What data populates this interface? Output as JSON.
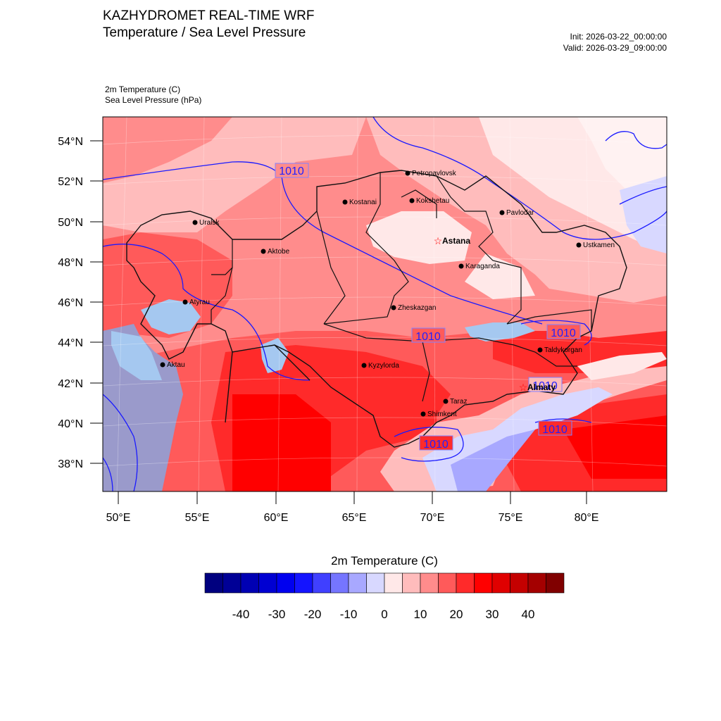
{
  "header": {
    "title": "KAZHYDROMET REAL-TIME WRF",
    "subtitle": "Temperature / Sea Level Pressure",
    "init": "Init: 2026-03-22_00:00:00",
    "valid": "Valid: 2026-03-29_09:00:00"
  },
  "variables": {
    "primary": "2m Temperature   (C)",
    "secondary": "Sea Level Pressure   (hPa)"
  },
  "map": {
    "lat_labels": [
      "54°N",
      "52°N",
      "50°N",
      "48°N",
      "46°N",
      "44°N",
      "42°N",
      "40°N",
      "38°N"
    ],
    "lon_labels": [
      "50°E",
      "55°E",
      "60°E",
      "65°E",
      "70°E",
      "75°E",
      "80°E"
    ],
    "isobar_labels": [
      "1010",
      "1010",
      "1010",
      "1010",
      "1010",
      "1010"
    ],
    "cities": [
      {
        "name": "Petropavlovsk",
        "capital": false
      },
      {
        "name": "Kostanai",
        "capital": false
      },
      {
        "name": "Kokshetau",
        "capital": false
      },
      {
        "name": "Pavlodar",
        "capital": false
      },
      {
        "name": "Uralsk",
        "capital": false
      },
      {
        "name": "Astana",
        "capital": true
      },
      {
        "name": "Aktobe",
        "capital": false
      },
      {
        "name": "Ustkamen",
        "capital": false
      },
      {
        "name": "Karaganda",
        "capital": false
      },
      {
        "name": "Atyrau",
        "capital": false
      },
      {
        "name": "Zheskazgan",
        "capital": false
      },
      {
        "name": "Taldykorgan",
        "capital": false
      },
      {
        "name": "Aktau",
        "capital": false
      },
      {
        "name": "Kyzylorda",
        "capital": false
      },
      {
        "name": "Almaty",
        "capital": true
      },
      {
        "name": "Taraz",
        "capital": false
      },
      {
        "name": "Shimkent",
        "capital": false
      }
    ]
  },
  "colorbar": {
    "title": "2m Temperature  (C)",
    "colors": [
      "#00007f",
      "#000096",
      "#0000b3",
      "#0000d2",
      "#0000ef",
      "#1414ff",
      "#4040ff",
      "#7575ff",
      "#a8a8ff",
      "#d8d8ff",
      "#ffe8e8",
      "#ffbcbc",
      "#ff8c8c",
      "#ff5a5a",
      "#ff2a2a",
      "#ff0000",
      "#e00000",
      "#c40000",
      "#a40000",
      "#800000"
    ],
    "tick_labels": [
      "-40",
      "-30",
      "-20",
      "-10",
      "0",
      "10",
      "20",
      "30",
      "40"
    ]
  }
}
